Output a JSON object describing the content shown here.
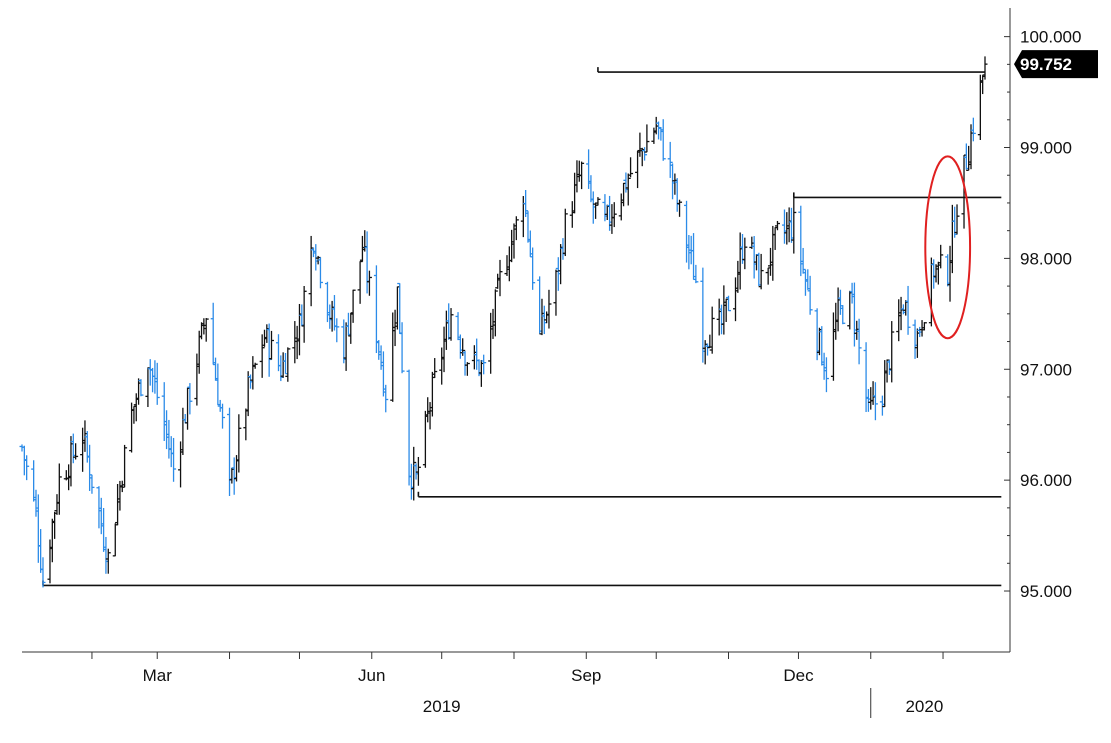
{
  "chart_data": {
    "type": "candlestick",
    "title": "",
    "xlabel": "",
    "ylabel": "",
    "ylim": [
      94.45,
      100.15
    ],
    "y_axis_position": "right",
    "grid": false,
    "legend": "none",
    "yticks": [
      {
        "value": 95,
        "label": "95.000"
      },
      {
        "value": 96,
        "label": "96.000"
      },
      {
        "value": 97,
        "label": "97.000"
      },
      {
        "value": 98,
        "label": "98.000"
      },
      {
        "value": 99,
        "label": "99.000"
      },
      {
        "value": 100,
        "label": "100.000"
      }
    ],
    "xticks": [
      {
        "label": "Mar",
        "date": "2019-03-01"
      },
      {
        "label": "Jun",
        "date": "2019-06-01"
      },
      {
        "label": "Sep",
        "date": "2019-09-01"
      },
      {
        "label": "Dec",
        "date": "2019-12-01"
      }
    ],
    "year_labels": [
      {
        "label": "2019",
        "date": "2019-07-01"
      },
      {
        "label": "2020",
        "date": "2020-01-24"
      }
    ],
    "x_range": [
      "2019-01-02",
      "2020-02-19"
    ],
    "month_tick_dates": [
      "2019-02-01",
      "2019-03-01",
      "2019-04-01",
      "2019-05-01",
      "2019-06-01",
      "2019-07-01",
      "2019-08-01",
      "2019-09-01",
      "2019-10-01",
      "2019-11-01",
      "2019-12-01",
      "2020-01-01",
      "2020-02-01"
    ],
    "year_divider_date": "2020-01-01",
    "close_path": [
      [
        "2019-01-02",
        96.3
      ],
      [
        "2019-01-08",
        95.7
      ],
      [
        "2019-01-11",
        95.1
      ],
      [
        "2019-01-18",
        96.0
      ],
      [
        "2019-01-28",
        96.4
      ],
      [
        "2019-02-04",
        95.7
      ],
      [
        "2019-02-08",
        95.3
      ],
      [
        "2019-02-18",
        96.6
      ],
      [
        "2019-02-25",
        97.1
      ],
      [
        "2019-03-04",
        96.5
      ],
      [
        "2019-03-08",
        96.1
      ],
      [
        "2019-03-15",
        96.8
      ],
      [
        "2019-03-22",
        97.5
      ],
      [
        "2019-03-29",
        96.5
      ],
      [
        "2019-04-01",
        95.9
      ],
      [
        "2019-04-09",
        96.8
      ],
      [
        "2019-04-16",
        97.3
      ],
      [
        "2019-04-23",
        97.0
      ],
      [
        "2019-05-01",
        97.4
      ],
      [
        "2019-05-07",
        98.2
      ],
      [
        "2019-05-14",
        97.5
      ],
      [
        "2019-05-20",
        97.2
      ],
      [
        "2019-05-28",
        98.1
      ],
      [
        "2019-06-01",
        97.6
      ],
      [
        "2019-06-07",
        96.8
      ],
      [
        "2019-06-12",
        97.7
      ],
      [
        "2019-06-17",
        96.1
      ],
      [
        "2019-06-20",
        96.0
      ],
      [
        "2019-06-27",
        96.8
      ],
      [
        "2019-07-05",
        97.5
      ],
      [
        "2019-07-12",
        97.1
      ],
      [
        "2019-07-19",
        97.0
      ],
      [
        "2019-07-26",
        97.8
      ],
      [
        "2019-08-02",
        98.3
      ],
      [
        "2019-08-05",
        98.6
      ],
      [
        "2019-08-12",
        97.3
      ],
      [
        "2019-08-19",
        97.8
      ],
      [
        "2019-08-23",
        98.3
      ],
      [
        "2019-08-30",
        98.8
      ],
      [
        "2019-09-03",
        98.5
      ],
      [
        "2019-09-09",
        98.3
      ],
      [
        "2019-09-16",
        98.6
      ],
      [
        "2019-09-23",
        98.9
      ],
      [
        "2019-10-01",
        99.2
      ],
      [
        "2019-10-07",
        98.8
      ],
      [
        "2019-10-11",
        98.4
      ],
      [
        "2019-10-18",
        97.8
      ],
      [
        "2019-10-21",
        97.3
      ],
      [
        "2019-10-29",
        97.4
      ],
      [
        "2019-11-04",
        97.8
      ],
      [
        "2019-11-08",
        98.2
      ],
      [
        "2019-11-15",
        97.8
      ],
      [
        "2019-11-22",
        98.2
      ],
      [
        "2019-11-29",
        98.3
      ],
      [
        "2019-12-04",
        97.8
      ],
      [
        "2019-12-09",
        97.3
      ],
      [
        "2019-12-13",
        97.0
      ],
      [
        "2019-12-18",
        97.5
      ],
      [
        "2019-12-24",
        97.6
      ],
      [
        "2019-12-31",
        96.6
      ],
      [
        "2020-01-06",
        96.8
      ],
      [
        "2020-01-10",
        97.2
      ],
      [
        "2020-01-15",
        97.6
      ],
      [
        "2020-01-21",
        97.3
      ],
      [
        "2020-01-28",
        97.9
      ],
      [
        "2020-02-03",
        97.9
      ],
      [
        "2020-02-07",
        98.5
      ],
      [
        "2020-02-12",
        99.0
      ],
      [
        "2020-02-19",
        99.752
      ]
    ],
    "horizontal_lines": [
      {
        "value": 99.68,
        "from": "2019-09-06",
        "to": "2020-02-19"
      },
      {
        "value": 98.55,
        "from": "2019-11-29",
        "to": "2020-02-26"
      },
      {
        "value": 95.85,
        "from": "2019-06-21",
        "to": "2020-02-26"
      },
      {
        "value": 95.05,
        "from": "2019-01-11",
        "to": "2020-02-26"
      }
    ],
    "highlight_ellipse": {
      "center_date": "2020-02-03",
      "center_value": 98.1,
      "span_days": 8,
      "span_value": 0.82,
      "color": "#e02020"
    },
    "last_value": {
      "value": 99.752,
      "label": "99.752"
    },
    "colors": {
      "up": "#111111",
      "down": "#2b8be8",
      "lines": "#111111",
      "label_bg": "#000000"
    }
  }
}
